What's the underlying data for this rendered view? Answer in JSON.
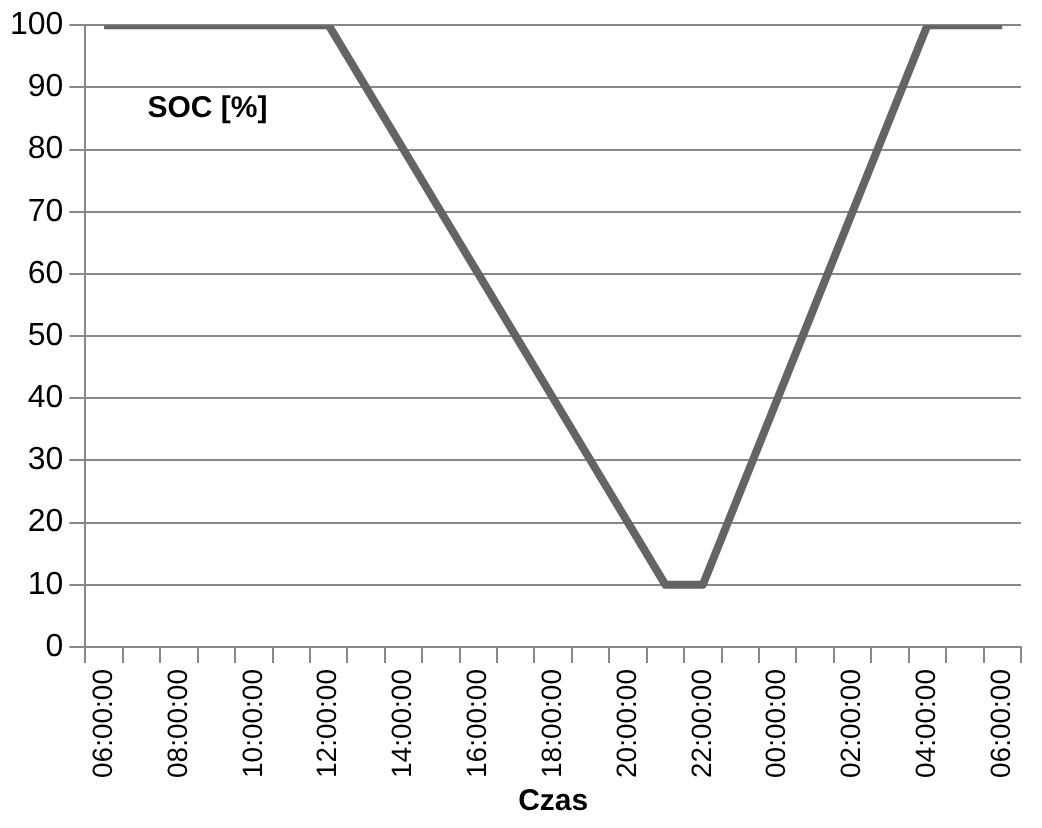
{
  "chart_data": {
    "type": "line",
    "title": "SOC [%]",
    "xlabel": "Czas",
    "categories": [
      "06:00:00",
      null,
      "08:00:00",
      null,
      "10:00:00",
      null,
      "12:00:00",
      null,
      "14:00:00",
      null,
      "16:00:00",
      null,
      "18:00:00",
      null,
      "20:00:00",
      null,
      "22:00:00",
      null,
      "00:00:00",
      null,
      "02:00:00",
      null,
      "04:00:00",
      null,
      "06:00:00"
    ],
    "values": [
      100,
      100,
      100,
      100,
      100,
      100,
      100,
      90,
      80,
      70,
      60,
      50,
      40,
      30,
      20,
      10,
      10,
      25,
      40,
      55,
      70,
      85,
      100,
      100,
      100
    ],
    "color": "#646464",
    "ylim": [
      0,
      100
    ],
    "yticks": [
      0,
      10,
      20,
      30,
      40,
      50,
      60,
      70,
      80,
      90,
      100
    ],
    "grid": "y",
    "legend": false,
    "marker": "none",
    "line_style": "solid"
  }
}
